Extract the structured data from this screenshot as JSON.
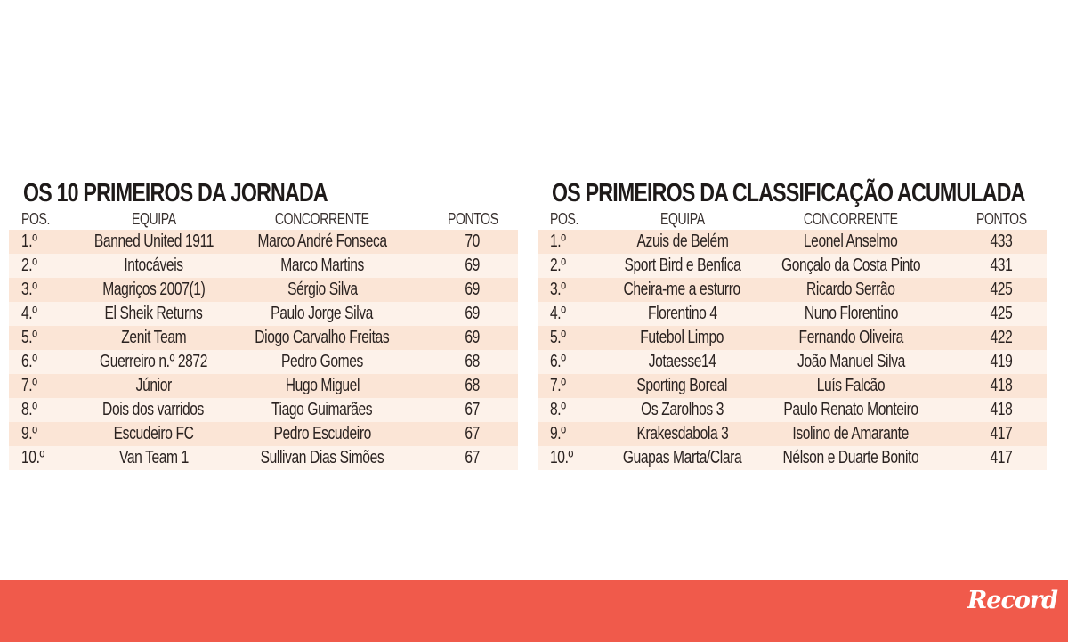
{
  "tables": [
    {
      "title": "OS 10 PRIMEIROS DA JORNADA",
      "headers": [
        "POS.",
        "EQUIPA",
        "CONCORRENTE",
        "PONTOS"
      ],
      "rows": [
        [
          "1.º",
          "Banned United 1911",
          "Marco André Fonseca",
          "70"
        ],
        [
          "2.º",
          "Intocáveis",
          "Marco Martins",
          "69"
        ],
        [
          "3.º",
          "Magriços 2007(1)",
          "Sérgio Silva",
          "69"
        ],
        [
          "4.º",
          "El Sheik Returns",
          "Paulo Jorge Silva",
          "69"
        ],
        [
          "5.º",
          "Zenit Team",
          "Diogo Carvalho Freitas",
          "69"
        ],
        [
          "6.º",
          "Guerreiro n.º 2872",
          "Pedro Gomes",
          "68"
        ],
        [
          "7.º",
          "Júnior",
          "Hugo Miguel",
          "68"
        ],
        [
          "8.º",
          "Dois dos varridos",
          "Tiago Guimarães",
          "67"
        ],
        [
          "9.º",
          "Escudeiro FC",
          "Pedro Escudeiro",
          "67"
        ],
        [
          "10.º",
          "Van Team 1",
          "Sullivan Dias Simões",
          "67"
        ]
      ]
    },
    {
      "title": "OS PRIMEIROS DA CLASSIFICAÇÃO ACUMULADA",
      "headers": [
        "POS.",
        "EQUIPA",
        "CONCORRENTE",
        "PONTOS"
      ],
      "rows": [
        [
          "1.º",
          "Azuis de Belém",
          "Leonel Anselmo",
          "433"
        ],
        [
          "2.º",
          "Sport Bird e Benfica",
          "Gonçalo da Costa Pinto",
          "431"
        ],
        [
          "3.º",
          "Cheira-me a esturro",
          "Ricardo Serrão",
          "425"
        ],
        [
          "4.º",
          "Florentino 4",
          "Nuno Florentino",
          "425"
        ],
        [
          "5.º",
          "Futebol Limpo",
          "Fernando Oliveira",
          "422"
        ],
        [
          "6.º",
          "Jotaesse14",
          "João Manuel Silva",
          "419"
        ],
        [
          "7.º",
          "Sporting Boreal",
          "Luís Falcão",
          "418"
        ],
        [
          "8.º",
          "Os Zarolhos 3",
          "Paulo Renato Monteiro",
          "418"
        ],
        [
          "9.º",
          "Krakesdabola 3",
          "Isolino de Amarante",
          "417"
        ],
        [
          "10.º",
          "Guapas Marta/Clara",
          "Nélson e Duarte Bonito",
          "417"
        ]
      ]
    }
  ],
  "footer": {
    "logo": "Record"
  },
  "colors": {
    "footer_bg": "#f05a4b",
    "row_stripe": "#fbe5d6",
    "row_alt": "#fdf2ea"
  }
}
